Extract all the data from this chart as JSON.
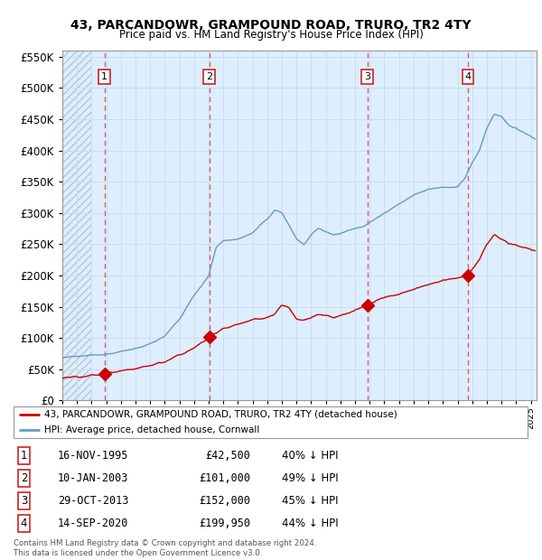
{
  "title": "43, PARCANDOWR, GRAMPOUND ROAD, TRURO, TR2 4TY",
  "subtitle": "Price paid vs. HM Land Registry's House Price Index (HPI)",
  "ylim": [
    0,
    560000
  ],
  "yticks": [
    0,
    50000,
    100000,
    150000,
    200000,
    250000,
    300000,
    350000,
    400000,
    450000,
    500000,
    550000
  ],
  "xlim_start": 1993.0,
  "xlim_end": 2025.4,
  "sale_dates": [
    1995.876,
    2003.03,
    2013.83,
    2020.71
  ],
  "sale_prices": [
    42500,
    101000,
    152000,
    199950
  ],
  "sale_labels": [
    "1",
    "2",
    "3",
    "4"
  ],
  "hpi_line_color": "#6699cc",
  "price_line_color": "#cc0000",
  "sale_marker_color": "#cc0000",
  "vline_color": "#dd4444",
  "legend_label_price": "43, PARCANDOWR, GRAMPOUND ROAD, TRURO, TR2 4TY (detached house)",
  "legend_label_hpi": "HPI: Average price, detached house, Cornwall",
  "table_rows": [
    {
      "num": "1",
      "date": "16-NOV-1995",
      "price": "£42,500",
      "pct": "40% ↓ HPI"
    },
    {
      "num": "2",
      "date": "10-JAN-2003",
      "price": "£101,000",
      "pct": "49% ↓ HPI"
    },
    {
      "num": "3",
      "date": "29-OCT-2013",
      "price": "£152,000",
      "pct": "45% ↓ HPI"
    },
    {
      "num": "4",
      "date": "14-SEP-2020",
      "price": "£199,950",
      "pct": "44% ↓ HPI"
    }
  ],
  "footnote": "Contains HM Land Registry data © Crown copyright and database right 2024.\nThis data is licensed under the Open Government Licence v3.0.",
  "grid_color": "#ccddee",
  "bg_color": "#ddeeff",
  "hatch_bg_color": "#c8d8e8"
}
